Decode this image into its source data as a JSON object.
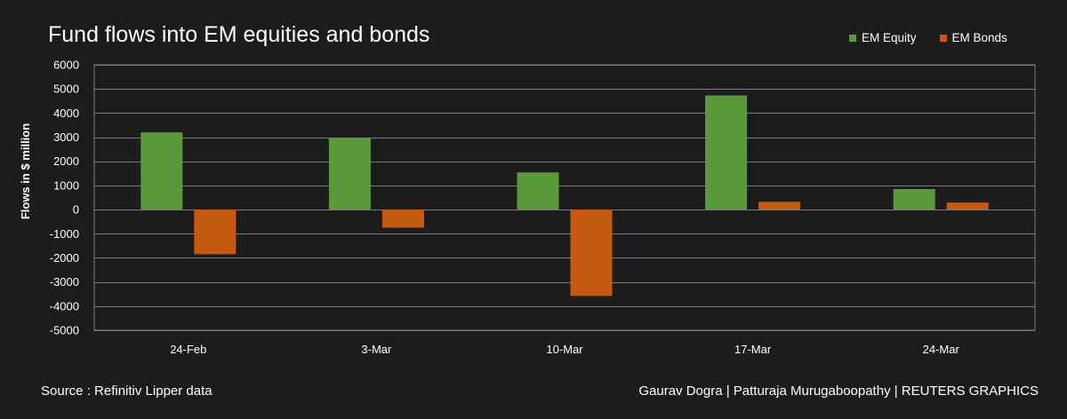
{
  "header": {
    "title": "Fund flows into EM equities and bonds"
  },
  "footer": {
    "source": "Source : Refinitiv Lipper data",
    "credits": "Gaurav Dogra | Patturaja Murugaboopathy | REUTERS GRAPHICS"
  },
  "colors": {
    "background": "#1c1c1c",
    "gridline": "#7a7a7a",
    "equity": "#5a9a3c",
    "bonds": "#c55a11"
  },
  "chart_data": {
    "type": "bar",
    "title": "Fund flows into EM equities and bonds",
    "xlabel": "",
    "ylabel": "Flows in $ million",
    "ylim": [
      -5000,
      6000
    ],
    "yticks": [
      6000,
      5000,
      4000,
      3000,
      2000,
      1000,
      0,
      -1000,
      -2000,
      -3000,
      -4000,
      -5000
    ],
    "grid": true,
    "legend_position": "top-right",
    "categories": [
      "24-Feb",
      "3-Mar",
      "10-Mar",
      "17-Mar",
      "24-Mar"
    ],
    "series": [
      {
        "name": "EM Equity",
        "color": "#5a9a3c",
        "values": [
          3200,
          2980,
          1540,
          4730,
          850
        ]
      },
      {
        "name": "EM Bonds",
        "color": "#c55a11",
        "values": [
          -1850,
          -750,
          -3580,
          320,
          290
        ]
      }
    ]
  }
}
